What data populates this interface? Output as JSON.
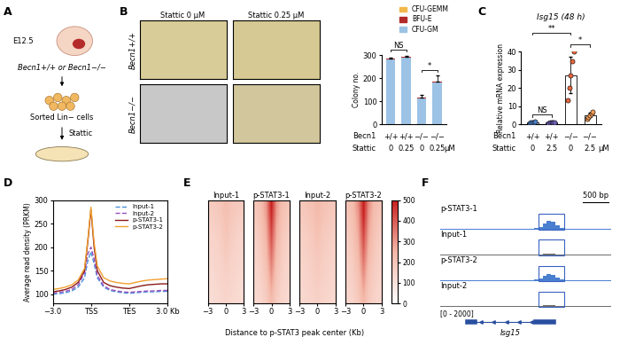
{
  "panel_labels": [
    "A",
    "B",
    "C",
    "D",
    "E",
    "F"
  ],
  "diagram": {
    "stage": "E12.5",
    "genotypes": "Becn1+/+ or Becn1−/−",
    "cells": "Sorted Lin− cells",
    "treatment": "Stattic"
  },
  "images": {
    "columns": [
      "Stattic 0 µM",
      "Stattic 0.25 µM"
    ],
    "rows": [
      "Becn1+/+",
      "Becn1−/−"
    ]
  },
  "chart_data": [
    {
      "type": "bar",
      "stacked": true,
      "ylabel": "Colony no.",
      "categories": [
        null,
        null,
        null,
        null
      ],
      "row_labels": [
        {
          "name": "Becn1",
          "labels": [
            "+/+",
            "+/+",
            "−/−",
            "−/−"
          ]
        },
        {
          "name": "Stattic",
          "labels": [
            "0",
            "0.25",
            "0",
            "0.25"
          ],
          "unit": "µM"
        }
      ],
      "series": [
        {
          "name": "CFU-GM",
          "color": "#9cc3e6",
          "values": [
            283,
            290,
            112,
            182
          ]
        },
        {
          "name": "BFU-E",
          "color": "#b22a2a",
          "values": [
            2,
            2,
            2,
            2
          ]
        },
        {
          "name": "CFU-GEMM",
          "color": "#f2b84b",
          "values": [
            2,
            2,
            2,
            2
          ]
        }
      ],
      "errors": [
        4,
        4,
        10,
        25
      ],
      "ylim": [
        0,
        300
      ],
      "yticks": [
        0,
        100,
        200,
        300
      ],
      "legend": "upper right",
      "annotations": [
        {
          "text": "NS",
          "from": 0,
          "to": 1
        },
        {
          "text": "*",
          "from": 2,
          "to": 3
        }
      ]
    },
    {
      "type": "bar",
      "title": "Isg15 (48 h)",
      "ylabel": "Relative mRNA expression",
      "categories": [
        null,
        null,
        null,
        null
      ],
      "row_labels": [
        {
          "name": "Becn1",
          "labels": [
            "+/+",
            "+/+",
            "−/−",
            "−/−"
          ]
        },
        {
          "name": "Stattic",
          "labels": [
            "0",
            "2.5",
            "0",
            "2.5"
          ],
          "unit": "µM"
        }
      ],
      "values": [
        1.0,
        1.0,
        27,
        5
      ],
      "errors": [
        0.2,
        0.3,
        10,
        1.3
      ],
      "colors": [
        "#4f81c7",
        "#6f5fb5",
        "#e8643c",
        "#f29a55"
      ],
      "points": [
        [
          0.7,
          0.9,
          1.0,
          1.1,
          1.3
        ],
        [
          0.6,
          0.8,
          1.0,
          1.1,
          1.2
        ],
        [
          13,
          20,
          27,
          35,
          40
        ],
        [
          3,
          4,
          5,
          6,
          7
        ]
      ],
      "ylim": [
        0,
        40
      ],
      "yticks": [
        0,
        10,
        20,
        30,
        40
      ],
      "annotations": [
        {
          "text": "NS",
          "from": 0,
          "to": 1
        },
        {
          "text": "*",
          "from": 2,
          "to": 3
        },
        {
          "text": "**",
          "from": 0,
          "to": 2
        }
      ]
    },
    {
      "type": "line",
      "ylabel": "Average read density (PRKM)",
      "x": [
        -3,
        -2.5,
        -2,
        -1.5,
        -1,
        -0.5,
        -0.25,
        0,
        0.25,
        0.5,
        1,
        1.5,
        2,
        2.5,
        3,
        3.5,
        4,
        4.5,
        5,
        5.5,
        6
      ],
      "xlim": [
        -3,
        6
      ],
      "xticks": [
        {
          "value": -3,
          "label": "−3.0"
        },
        {
          "value": 0,
          "label": "TSS"
        },
        {
          "value": 3,
          "label": "TES"
        },
        {
          "value": 6,
          "label": "3.0 Kb"
        }
      ],
      "ylim": [
        80,
        300
      ],
      "yticks": [
        100,
        150,
        200,
        250,
        300
      ],
      "legend": "upper right",
      "series": [
        {
          "name": "Input-1",
          "color": "#4a90d9",
          "line_style": "dashed",
          "values": [
            100,
            101,
            103,
            107,
            115,
            135,
            170,
            190,
            165,
            135,
            115,
            108,
            105,
            103,
            102,
            103,
            104,
            105,
            105,
            106,
            106
          ]
        },
        {
          "name": "Input-2",
          "color": "#9b4fc0",
          "line_style": "dashed",
          "values": [
            102,
            104,
            106,
            110,
            120,
            145,
            185,
            200,
            175,
            140,
            118,
            110,
            107,
            105,
            104,
            105,
            106,
            107,
            107,
            108,
            108
          ]
        },
        {
          "name": "p-STAT3-1",
          "color": "#8b1a1a",
          "line_style": "solid",
          "values": [
            105,
            107,
            110,
            115,
            125,
            150,
            210,
            280,
            200,
            150,
            125,
            118,
            115,
            113,
            112,
            115,
            118,
            120,
            121,
            122,
            122
          ]
        },
        {
          "name": "p-STAT3-2",
          "color": "#f0a030",
          "line_style": "solid",
          "values": [
            110,
            112,
            115,
            120,
            130,
            155,
            215,
            285,
            210,
            160,
            135,
            128,
            125,
            123,
            122,
            125,
            128,
            130,
            131,
            132,
            133
          ]
        }
      ]
    },
    {
      "type": "heatmap",
      "xlabel": "Distance to p-STAT3 peak center (Kb)",
      "xlim": [
        -3,
        3
      ],
      "xticks": [
        {
          "value": -3,
          "label": "−3"
        },
        0,
        3
      ],
      "colorbar": {
        "range": [
          0,
          500
        ],
        "ticks": [
          0,
          100,
          200,
          300,
          400,
          500
        ]
      },
      "panels": [
        {
          "name": "Input-1",
          "cells": [
            [
              180,
              190,
              200,
              230,
              200,
              190,
              180
            ],
            [
              170,
              180,
              195,
              220,
              195,
              180,
              170
            ],
            [
              160,
              170,
              185,
              210,
              185,
              170,
              160
            ],
            [
              150,
              160,
              175,
              200,
              175,
              160,
              150
            ],
            [
              145,
              155,
              170,
              190,
              170,
              155,
              145
            ],
            [
              140,
              150,
              160,
              180,
              160,
              150,
              140
            ],
            [
              135,
              145,
              155,
              170,
              155,
              145,
              135
            ],
            [
              130,
              140,
              150,
              165,
              150,
              140,
              130
            ],
            [
              125,
              135,
              145,
              155,
              145,
              135,
              125
            ],
            [
              120,
              130,
              140,
              150,
              140,
              130,
              120
            ]
          ]
        },
        {
          "name": "p-STAT3-1",
          "cells": [
            [
              200,
              230,
              300,
              500,
              300,
              230,
              200
            ],
            [
              190,
              220,
              290,
              480,
              290,
              220,
              190
            ],
            [
              180,
              210,
              270,
              450,
              270,
              210,
              180
            ],
            [
              170,
              200,
              260,
              420,
              260,
              200,
              170
            ],
            [
              160,
              190,
              240,
              390,
              240,
              190,
              160
            ],
            [
              155,
              180,
              230,
              360,
              230,
              180,
              155
            ],
            [
              150,
              170,
              215,
              330,
              215,
              170,
              150
            ],
            [
              145,
              165,
              200,
              300,
              200,
              165,
              145
            ],
            [
              140,
              155,
              190,
              270,
              190,
              155,
              140
            ],
            [
              135,
              150,
              180,
              240,
              180,
              150,
              135
            ]
          ]
        },
        {
          "name": "Input-2",
          "cells": [
            [
              195,
              205,
              215,
              245,
              215,
              205,
              195
            ],
            [
              185,
              195,
              210,
              235,
              210,
              195,
              185
            ],
            [
              175,
              185,
              200,
              225,
              200,
              185,
              175
            ],
            [
              165,
              175,
              190,
              215,
              190,
              175,
              165
            ],
            [
              160,
              170,
              185,
              205,
              185,
              170,
              160
            ],
            [
              155,
              165,
              175,
              195,
              175,
              165,
              155
            ],
            [
              150,
              160,
              170,
              185,
              170,
              160,
              150
            ],
            [
              145,
              155,
              165,
              180,
              165,
              155,
              145
            ],
            [
              140,
              150,
              160,
              170,
              160,
              150,
              140
            ],
            [
              135,
              145,
              155,
              165,
              155,
              145,
              135
            ]
          ]
        },
        {
          "name": "p-STAT3-2",
          "cells": [
            [
              210,
              240,
              320,
              500,
              320,
              240,
              210
            ],
            [
              200,
              230,
              300,
              490,
              300,
              230,
              200
            ],
            [
              190,
              220,
              285,
              460,
              285,
              220,
              190
            ],
            [
              180,
              210,
              270,
              430,
              270,
              210,
              180
            ],
            [
              170,
              200,
              255,
              400,
              255,
              200,
              170
            ],
            [
              165,
              190,
              240,
              370,
              240,
              190,
              165
            ],
            [
              160,
              180,
              225,
              340,
              225,
              180,
              160
            ],
            [
              155,
              175,
              210,
              310,
              210,
              175,
              155
            ],
            [
              150,
              165,
              200,
              280,
              200,
              165,
              150
            ],
            [
              145,
              160,
              190,
              250,
              190,
              160,
              145
            ]
          ]
        }
      ]
    },
    {
      "type": "track",
      "ylim": [
        0,
        2000
      ],
      "range_label": "[0 - 2000]",
      "highlight_bins": [
        23,
        28
      ],
      "gene": {
        "name": "Isg15",
        "start": 6,
        "end": 26
      },
      "scale_bar": {
        "label": "500 bp",
        "length": 6
      },
      "tracks": [
        {
          "name": "p-STAT3-1",
          "color": "#4a7fd0",
          "values": [
            60,
            80,
            70,
            90,
            60,
            50,
            80,
            100,
            70,
            60,
            90,
            80,
            60,
            70,
            100,
            80,
            60,
            90,
            110,
            80,
            70,
            100,
            150,
            300,
            800,
            1150,
            950,
            500,
            200,
            100,
            80,
            70,
            90,
            60,
            80,
            70,
            60,
            90,
            70,
            60
          ]
        },
        {
          "name": "Input-1",
          "color": "#6e6e6e",
          "values": [
            80,
            120,
            90,
            60,
            100,
            70,
            130,
            90,
            60,
            110,
            80,
            140,
            70,
            90,
            120,
            60,
            100,
            80,
            130,
            90,
            110,
            80,
            150,
            120,
            160,
            200,
            170,
            140,
            100,
            90,
            120,
            80,
            100,
            70,
            90,
            110,
            80,
            60,
            100,
            70
          ]
        },
        {
          "name": "p-STAT3-2",
          "color": "#4a7fd0",
          "values": [
            90,
            100,
            80,
            110,
            70,
            90,
            120,
            80,
            100,
            90,
            80,
            110,
            90,
            70,
            100,
            120,
            90,
            80,
            100,
            110,
            90,
            120,
            180,
            350,
            700,
            950,
            800,
            450,
            220,
            130,
            100,
            90,
            110,
            80,
            100,
            90,
            80,
            110,
            90,
            80
          ]
        },
        {
          "name": "Input-2",
          "color": "#6e6e6e",
          "values": [
            100,
            140,
            120,
            90,
            150,
            110,
            160,
            130,
            100,
            140,
            120,
            170,
            110,
            130,
            150,
            100,
            140,
            120,
            170,
            130,
            150,
            120,
            190,
            170,
            210,
            260,
            220,
            180,
            150,
            130,
            160,
            120,
            140,
            110,
            130,
            150,
            120,
            100,
            140,
            110
          ]
        }
      ]
    }
  ]
}
